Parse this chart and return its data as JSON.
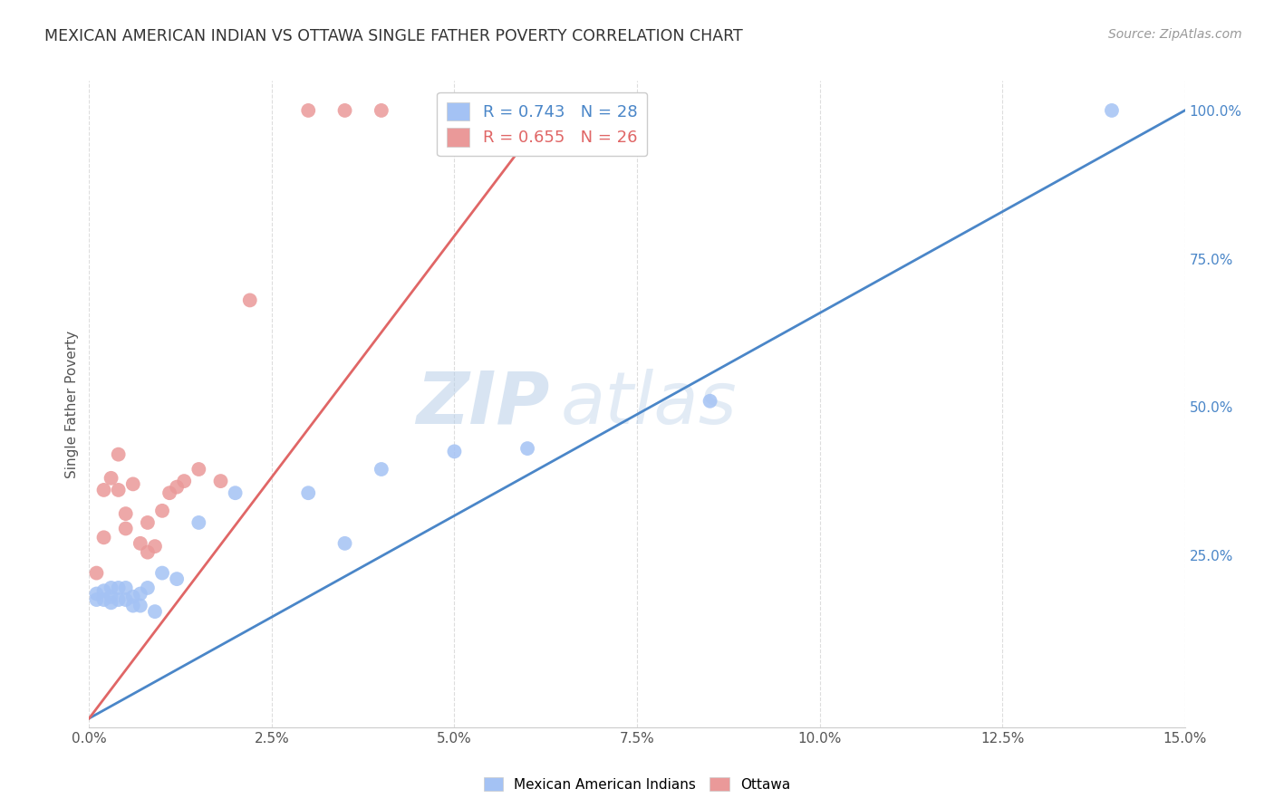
{
  "title": "MEXICAN AMERICAN INDIAN VS OTTAWA SINGLE FATHER POVERTY CORRELATION CHART",
  "source": "Source: ZipAtlas.com",
  "ylabel": "Single Father Poverty",
  "x_min": 0.0,
  "x_max": 0.15,
  "y_min": -0.04,
  "y_max": 1.05,
  "blue_R": 0.743,
  "blue_N": 28,
  "pink_R": 0.655,
  "pink_N": 26,
  "blue_color": "#a4c2f4",
  "pink_color": "#ea9999",
  "blue_line_color": "#4a86c8",
  "pink_line_color": "#e06666",
  "watermark_zip": "ZIP",
  "watermark_atlas": "atlas",
  "legend_label_blue": "Mexican American Indians",
  "legend_label_pink": "Ottawa",
  "blue_x": [
    0.001,
    0.001,
    0.002,
    0.002,
    0.003,
    0.003,
    0.003,
    0.004,
    0.004,
    0.005,
    0.005,
    0.006,
    0.006,
    0.007,
    0.007,
    0.008,
    0.009,
    0.01,
    0.012,
    0.015,
    0.02,
    0.03,
    0.035,
    0.04,
    0.05,
    0.06,
    0.085,
    0.14
  ],
  "blue_y": [
    0.185,
    0.175,
    0.19,
    0.175,
    0.195,
    0.18,
    0.17,
    0.195,
    0.175,
    0.195,
    0.175,
    0.18,
    0.165,
    0.185,
    0.165,
    0.195,
    0.155,
    0.22,
    0.21,
    0.305,
    0.355,
    0.355,
    0.27,
    0.395,
    0.425,
    0.43,
    0.51,
    1.0
  ],
  "pink_x": [
    0.001,
    0.002,
    0.002,
    0.003,
    0.004,
    0.004,
    0.005,
    0.005,
    0.006,
    0.007,
    0.008,
    0.008,
    0.009,
    0.01,
    0.011,
    0.012,
    0.013,
    0.015,
    0.018,
    0.022,
    0.03,
    0.035,
    0.04,
    0.055,
    0.06,
    0.065
  ],
  "pink_y": [
    0.22,
    0.36,
    0.28,
    0.38,
    0.42,
    0.36,
    0.32,
    0.295,
    0.37,
    0.27,
    0.305,
    0.255,
    0.265,
    0.325,
    0.355,
    0.365,
    0.375,
    0.395,
    0.375,
    0.68,
    1.0,
    1.0,
    1.0,
    1.0,
    1.0,
    1.0
  ],
  "blue_line_x0": 0.0,
  "blue_line_y0": -0.025,
  "blue_line_x1": 0.15,
  "blue_line_y1": 1.0,
  "pink_line_x0": 0.0,
  "pink_line_y0": -0.025,
  "pink_line_x1": 0.063,
  "pink_line_y1": 1.0,
  "x_tick_vals": [
    0.0,
    0.025,
    0.05,
    0.075,
    0.1,
    0.125,
    0.15
  ],
  "x_tick_labels": [
    "0.0%",
    "2.5%",
    "5.0%",
    "7.5%",
    "10.0%",
    "12.5%",
    "15.0%"
  ],
  "y_tick_right_vals": [
    0.25,
    0.5,
    0.75,
    1.0
  ],
  "y_tick_right_labels": [
    "25.0%",
    "50.0%",
    "75.0%",
    "100.0%"
  ],
  "background_color": "#ffffff",
  "grid_color": "#dddddd"
}
